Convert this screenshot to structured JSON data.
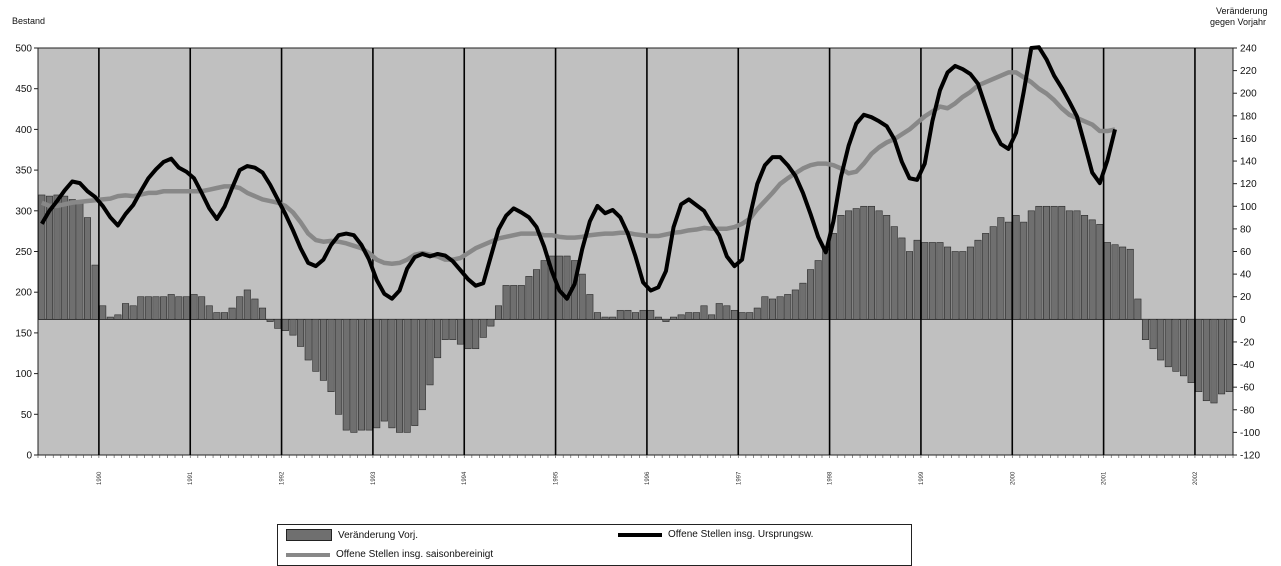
{
  "chart_data": {
    "type": "bar+line",
    "left_axis_title": "Bestand",
    "right_axis_title": [
      "Veränderung",
      "gegen Vorjahr"
    ],
    "left_axis": {
      "min": 0,
      "max": 500,
      "ticks": [
        0,
        50,
        100,
        150,
        200,
        250,
        300,
        350,
        400,
        450,
        500
      ]
    },
    "right_axis": {
      "min": -120,
      "max": 240,
      "ticks": [
        -120,
        -100,
        -80,
        -60,
        -40,
        -20,
        0,
        20,
        40,
        60,
        80,
        100,
        120,
        140,
        160,
        180,
        200,
        220,
        240
      ]
    },
    "year_ticks": [
      "1990",
      "1991",
      "1992",
      "1993",
      "1994",
      "1995",
      "1996",
      "1997",
      "1998",
      "1999",
      "2000",
      "2001",
      "2002"
    ],
    "series": [
      {
        "name": "Veränderung Vorj.",
        "type": "bar",
        "axis": "right",
        "color": "#6f6f6f",
        "values": [
          110,
          109,
          110,
          109,
          106,
          104,
          90,
          48,
          12,
          2,
          4,
          14,
          12,
          20,
          20,
          20,
          20,
          22,
          20,
          20,
          22,
          20,
          12,
          6,
          6,
          10,
          20,
          26,
          18,
          10,
          -2,
          -8,
          -10,
          -14,
          -24,
          -36,
          -46,
          -54,
          -64,
          -84,
          -98,
          -100,
          -98,
          -98,
          -96,
          -90,
          -96,
          -100,
          -100,
          -94,
          -80,
          -58,
          -34,
          -18,
          -18,
          -22,
          -26,
          -26,
          -16,
          -6,
          12,
          30,
          30,
          30,
          38,
          44,
          52,
          56,
          56,
          56,
          52,
          40,
          22,
          6,
          2,
          2,
          8,
          8,
          6,
          8,
          8,
          2,
          -2,
          2,
          4,
          6,
          6,
          12,
          4,
          14,
          12,
          8,
          6,
          6,
          10,
          20,
          18,
          20,
          22,
          26,
          32,
          44,
          52,
          62,
          76,
          92,
          96,
          98,
          100,
          100,
          96,
          92,
          82,
          72,
          60,
          70,
          68,
          68,
          68,
          64,
          60,
          60,
          64,
          70,
          76,
          82,
          90,
          86,
          92,
          86,
          96,
          100,
          100,
          100,
          100,
          96,
          96,
          92,
          88,
          84,
          68,
          66,
          64,
          62,
          18,
          -18,
          -26,
          -36,
          -42,
          -46,
          -50,
          -56,
          -64,
          -72,
          -74,
          -66,
          -64
        ]
      },
      {
        "name": "Offene Stellen insg. Ursprungsw.",
        "type": "line",
        "axis": "left",
        "color": "#000000",
        "values": [
          284,
          300,
          312,
          325,
          336,
          334,
          324,
          317,
          306,
          292,
          282,
          296,
          307,
          324,
          340,
          351,
          360,
          364,
          353,
          348,
          340,
          322,
          303,
          290,
          305,
          328,
          350,
          355,
          353,
          347,
          332,
          314,
          296,
          276,
          254,
          236,
          232,
          240,
          258,
          270,
          272,
          270,
          258,
          240,
          215,
          198,
          192,
          202,
          229,
          243,
          247,
          244,
          247,
          245,
          238,
          227,
          216,
          208,
          211,
          244,
          277,
          294,
          303,
          298,
          292,
          280,
          256,
          226,
          202,
          192,
          210,
          253,
          287,
          306,
          297,
          301,
          292,
          272,
          244,
          212,
          202,
          206,
          226,
          280,
          308,
          314,
          307,
          300,
          284,
          270,
          244,
          232,
          240,
          292,
          333,
          356,
          366,
          366,
          356,
          343,
          322,
          296,
          268,
          249,
          287,
          342,
          380,
          407,
          418,
          415,
          410,
          404,
          388,
          360,
          340,
          338,
          358,
          410,
          448,
          470,
          478,
          474,
          468,
          456,
          428,
          400,
          382,
          376,
          396,
          446,
          500,
          501,
          486,
          466,
          451,
          434,
          416,
          382,
          347,
          334,
          362,
          400
        ]
      },
      {
        "name": "Offene Stellen insg. saisonbereinigt",
        "type": "line",
        "axis": "left",
        "color": "#888888",
        "values": [
          310,
          306,
          306,
          308,
          310,
          311,
          312,
          313,
          314,
          315,
          318,
          319,
          318,
          320,
          322,
          322,
          324,
          324,
          324,
          324,
          324,
          324,
          326,
          328,
          330,
          330,
          328,
          322,
          318,
          314,
          312,
          310,
          306,
          298,
          286,
          272,
          264,
          262,
          263,
          262,
          260,
          257,
          254,
          248,
          240,
          236,
          235,
          236,
          240,
          246,
          248,
          246,
          244,
          240,
          240,
          242,
          248,
          254,
          258,
          262,
          266,
          268,
          270,
          272,
          272,
          272,
          270,
          270,
          268,
          267,
          267,
          268,
          270,
          271,
          272,
          272,
          273,
          273,
          271,
          270,
          269,
          269,
          271,
          273,
          274,
          276,
          277,
          279,
          278,
          278,
          278,
          280,
          284,
          290,
          302,
          312,
          322,
          333,
          340,
          346,
          352,
          356,
          358,
          358,
          356,
          352,
          346,
          348,
          358,
          370,
          378,
          384,
          388,
          394,
          400,
          408,
          416,
          422,
          428,
          426,
          432,
          440,
          446,
          454,
          458,
          462,
          466,
          470,
          470,
          464,
          458,
          450,
          444,
          436,
          426,
          418,
          414,
          410,
          406,
          398,
          398,
          400
        ]
      }
    ]
  },
  "legend": {
    "bar": "Veränderung Vorj.",
    "line_raw": "Offene Stellen insg. Ursprungsw.",
    "line_sa": "Offene Stellen insg. saisonbereinigt"
  }
}
